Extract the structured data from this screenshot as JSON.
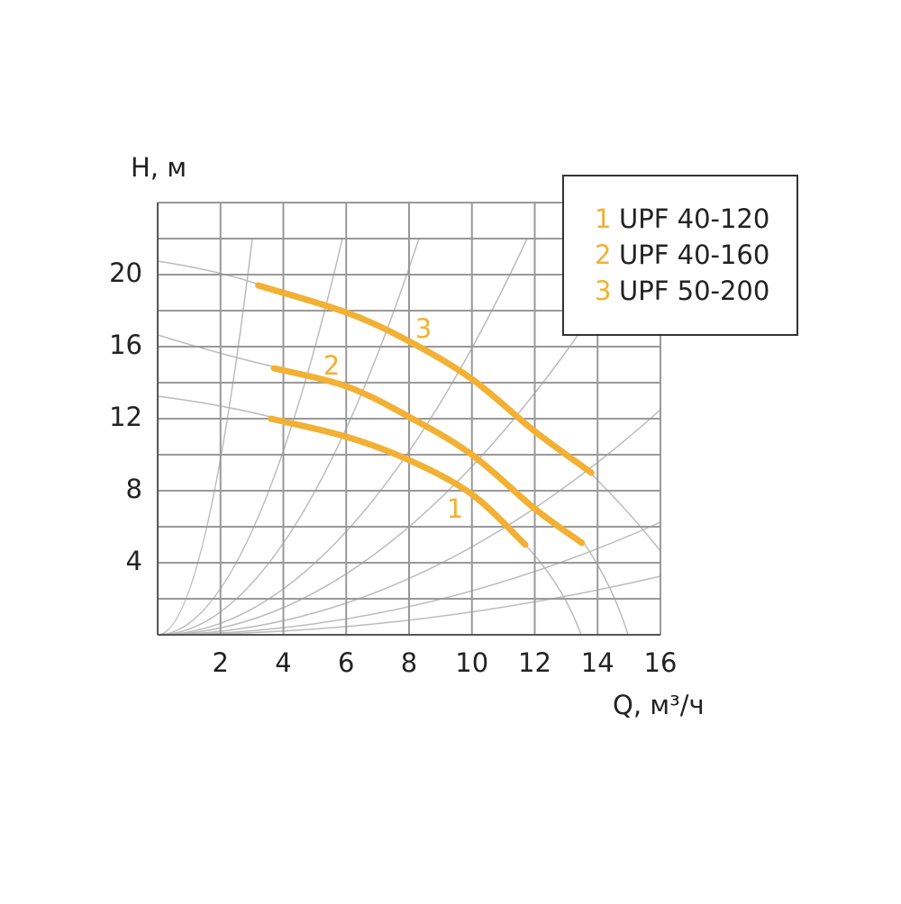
{
  "chart_data": {
    "type": "line",
    "y_label": "H, м",
    "x_label": "Q, м³/ч",
    "xlim": [
      0,
      16
    ],
    "xticks": [
      2,
      4,
      6,
      8,
      10,
      12,
      14,
      16
    ],
    "ylim": [
      0,
      24
    ],
    "yticks": [
      4,
      8,
      12,
      16,
      20
    ],
    "y_minor_gridlines": [
      2,
      6,
      10,
      14,
      18,
      22,
      24
    ],
    "grid": true,
    "legend": "upper right",
    "series": [
      {
        "name": "UPF 40-120",
        "label": "1",
        "color": "#f2b134",
        "x": [
          3.6,
          6,
          8,
          10,
          11.7
        ],
        "values": [
          12.0,
          11.0,
          9.7,
          7.8,
          5.0
        ]
      },
      {
        "name": "UPF 40-160",
        "label": "2",
        "color": "#f2b134",
        "x": [
          3.7,
          6,
          8,
          10,
          12,
          13.5
        ],
        "values": [
          14.8,
          13.8,
          12.1,
          10.0,
          7.0,
          5.1
        ]
      },
      {
        "name": "UPF 50-200",
        "label": "3",
        "color": "#f2b134",
        "x": [
          3.2,
          6,
          8,
          10,
          12,
          13.8
        ],
        "values": [
          19.4,
          17.9,
          16.3,
          14.2,
          11.3,
          9.0
        ]
      }
    ]
  }
}
